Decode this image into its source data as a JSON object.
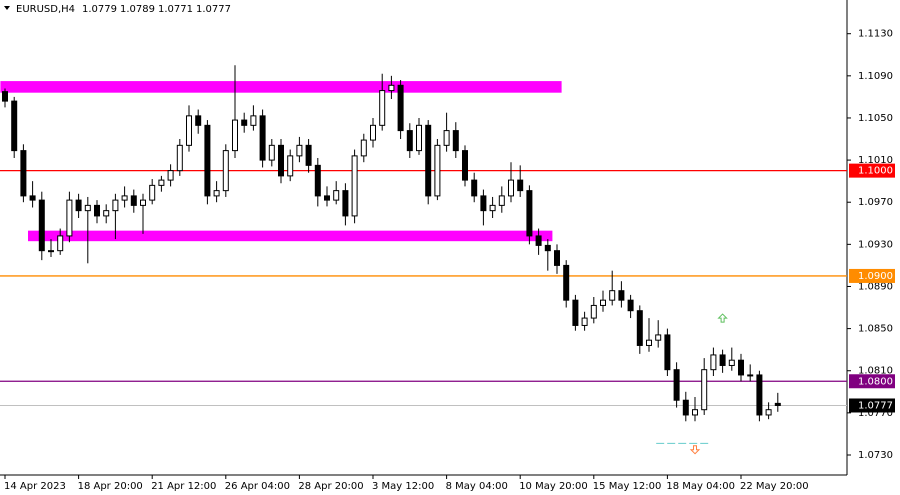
{
  "chart_data": {
    "type": "candlestick",
    "title": "EURUSD,H4",
    "categories": [
      "14 Apr 2023",
      null,
      null,
      null,
      null,
      null,
      null,
      null,
      "18 Apr 20:00",
      null,
      null,
      null,
      null,
      null,
      null,
      null,
      "21 Apr 12:00",
      null,
      null,
      null,
      null,
      null,
      null,
      null,
      "26 Apr 04:00",
      null,
      null,
      null,
      null,
      null,
      null,
      null,
      "28 Apr 20:00",
      null,
      null,
      null,
      null,
      null,
      null,
      null,
      "3 May 12:00",
      null,
      null,
      null,
      null,
      null,
      null,
      null,
      "8 May 04:00",
      null,
      null,
      null,
      null,
      null,
      null,
      null,
      "10 May 20:00",
      null,
      null,
      null,
      null,
      null,
      null,
      null,
      "15 May 12:00",
      null,
      null,
      null,
      null,
      null,
      null,
      null,
      "18 May 04:00",
      null,
      null,
      null,
      null,
      null,
      null,
      null,
      "22 May 20:00",
      null,
      null,
      null,
      null
    ],
    "ohlc": [
      [
        1.1075,
        1.1078,
        1.106,
        1.1066
      ],
      [
        1.1066,
        1.107,
        1.1012,
        1.1019
      ],
      [
        1.1019,
        1.1025,
        1.097,
        1.0976
      ],
      [
        1.0976,
        1.099,
        1.0965,
        1.0972
      ],
      [
        1.0972,
        1.098,
        1.0915,
        1.0924
      ],
      [
        1.0924,
        1.0935,
        1.0918,
        1.0924
      ],
      [
        1.0924,
        1.0945,
        1.092,
        1.0938
      ],
      [
        1.0938,
        1.098,
        1.0932,
        1.0972
      ],
      [
        1.0972,
        1.0978,
        1.0955,
        1.0962
      ],
      [
        1.0962,
        1.0975,
        1.0912,
        1.0967
      ],
      [
        1.0967,
        1.0972,
        1.095,
        1.0957
      ],
      [
        1.0957,
        1.0968,
        1.095,
        1.0962
      ],
      [
        1.0962,
        1.0978,
        1.0935,
        1.0972
      ],
      [
        1.0972,
        1.0985,
        1.0965,
        1.0976
      ],
      [
        1.0976,
        1.0982,
        1.096,
        1.0967
      ],
      [
        1.0967,
        1.0978,
        1.094,
        1.0972
      ],
      [
        1.0972,
        1.0992,
        1.0968,
        1.0986
      ],
      [
        1.0986,
        1.0995,
        1.098,
        1.0991
      ],
      [
        1.0991,
        1.1006,
        1.0985,
        1.1
      ],
      [
        1.1,
        1.103,
        1.0995,
        1.1024
      ],
      [
        1.1024,
        1.1062,
        1.1018,
        1.1052
      ],
      [
        1.1052,
        1.1058,
        1.1035,
        1.1043
      ],
      [
        1.1043,
        1.1048,
        1.0968,
        1.0976
      ],
      [
        1.0976,
        1.099,
        1.097,
        1.0981
      ],
      [
        1.0981,
        1.1025,
        1.0975,
        1.1019
      ],
      [
        1.1019,
        1.11,
        1.1012,
        1.1048
      ],
      [
        1.1048,
        1.1055,
        1.1036,
        1.1043
      ],
      [
        1.1043,
        1.1062,
        1.1038,
        1.1052
      ],
      [
        1.1052,
        1.1058,
        1.1003,
        1.101
      ],
      [
        1.101,
        1.103,
        1.1004,
        1.1024
      ],
      [
        1.1024,
        1.103,
        1.0988,
        1.0995
      ],
      [
        1.0995,
        1.102,
        1.099,
        1.1014
      ],
      [
        1.1014,
        1.1032,
        1.1008,
        1.1024
      ],
      [
        1.1024,
        1.103,
        1.0998,
        1.1005
      ],
      [
        1.1005,
        1.1012,
        1.0966,
        1.0976
      ],
      [
        1.0976,
        1.0985,
        1.0966,
        1.0972
      ],
      [
        1.0972,
        1.099,
        1.0968,
        1.0981
      ],
      [
        1.0981,
        1.0988,
        1.0948,
        1.0957
      ],
      [
        1.0957,
        1.102,
        1.095,
        1.1014
      ],
      [
        1.1014,
        1.1035,
        1.1008,
        1.1029
      ],
      [
        1.1029,
        1.105,
        1.1022,
        1.1043
      ],
      [
        1.1043,
        1.1092,
        1.1038,
        1.1076
      ],
      [
        1.1076,
        1.109,
        1.1068,
        1.1081
      ],
      [
        1.1081,
        1.1086,
        1.103,
        1.1038
      ],
      [
        1.1038,
        1.1045,
        1.1012,
        1.1019
      ],
      [
        1.1019,
        1.105,
        1.1015,
        1.1043
      ],
      [
        1.1043,
        1.1048,
        1.0968,
        1.0976
      ],
      [
        1.0976,
        1.103,
        1.0972,
        1.1024
      ],
      [
        1.1024,
        1.1055,
        1.1018,
        1.1038
      ],
      [
        1.1038,
        1.1046,
        1.1012,
        1.1019
      ],
      [
        1.1019,
        1.1024,
        1.0985,
        1.0991
      ],
      [
        1.0991,
        1.0998,
        1.097,
        1.0976
      ],
      [
        1.0976,
        1.0982,
        1.0948,
        1.0962
      ],
      [
        1.0962,
        1.0975,
        1.0955,
        1.0967
      ],
      [
        1.0967,
        1.0985,
        1.096,
        1.0976
      ],
      [
        1.0976,
        1.1008,
        1.097,
        1.0991
      ],
      [
        1.0991,
        1.1005,
        1.0975,
        1.0981
      ],
      [
        1.0981,
        1.0986,
        1.093,
        1.0938
      ],
      [
        1.0938,
        1.0945,
        1.092,
        1.0929
      ],
      [
        1.0929,
        1.0935,
        1.0905,
        1.0924
      ],
      [
        1.0924,
        1.093,
        1.0902,
        1.091
      ],
      [
        1.091,
        1.0915,
        1.087,
        1.0877
      ],
      [
        1.0877,
        1.0882,
        1.0848,
        1.0853
      ],
      [
        1.0853,
        1.0866,
        1.0848,
        1.086
      ],
      [
        1.086,
        1.088,
        1.0855,
        1.0872
      ],
      [
        1.0872,
        1.0886,
        1.0866,
        1.0877
      ],
      [
        1.0877,
        1.0905,
        1.0872,
        1.0886
      ],
      [
        1.0886,
        1.0895,
        1.087,
        1.0877
      ],
      [
        1.0877,
        1.0882,
        1.086,
        1.0867
      ],
      [
        1.0867,
        1.0872,
        1.0826,
        1.0834
      ],
      [
        1.0834,
        1.086,
        1.0828,
        1.0839
      ],
      [
        1.0839,
        1.0858,
        1.0832,
        1.0844
      ],
      [
        1.0844,
        1.085,
        1.0805,
        1.0811
      ],
      [
        1.0811,
        1.0818,
        1.0775,
        1.0782
      ],
      [
        1.0782,
        1.079,
        1.0762,
        1.0768
      ],
      [
        1.0768,
        1.0785,
        1.0762,
        1.0773
      ],
      [
        1.0773,
        1.0822,
        1.0768,
        1.0811
      ],
      [
        1.0811,
        1.0832,
        1.0805,
        1.0825
      ],
      [
        1.0825,
        1.083,
        1.0808,
        1.0815
      ],
      [
        1.0815,
        1.0832,
        1.081,
        1.082
      ],
      [
        1.082,
        1.0826,
        1.08,
        1.0806
      ],
      [
        1.0806,
        1.0816,
        1.08,
        1.0806
      ],
      [
        1.0806,
        1.081,
        1.0762,
        1.0768
      ],
      [
        1.0768,
        1.078,
        1.0764,
        1.0773
      ],
      [
        1.0779,
        1.0789,
        1.0771,
        1.0777
      ]
    ],
    "ylim": [
      1.0711,
      1.1162
    ],
    "yticks": [
      {
        "value": 1.113,
        "label": "1.1130"
      },
      {
        "value": 1.109,
        "label": "1.1090"
      },
      {
        "value": 1.105,
        "label": "1.1050"
      },
      {
        "value": 1.101,
        "label": "1.1010"
      },
      {
        "value": 1.097,
        "label": "1.0970"
      },
      {
        "value": 1.093,
        "label": "1.0930"
      },
      {
        "value": 1.089,
        "label": "1.0890"
      },
      {
        "value": 1.085,
        "label": "1.0850"
      },
      {
        "value": 1.081,
        "label": "1.0810"
      },
      {
        "value": 1.077,
        "label": "1.0770"
      },
      {
        "value": 1.073,
        "label": "1.0730"
      }
    ],
    "levels": [
      {
        "value": 1.1,
        "label": "1.1000",
        "color": "#ff0000"
      },
      {
        "value": 1.09,
        "label": "1.0900",
        "color": "#ff8c00"
      },
      {
        "value": 1.08,
        "label": "1.0800",
        "color": "#800080"
      }
    ],
    "current_price": {
      "value": 1.0777,
      "label": "1.0777"
    },
    "zones": [
      {
        "top": 1.1085,
        "bottom": 1.1074,
        "from": 0,
        "to": 60,
        "color": "#ff00ff"
      },
      {
        "top": 1.0943,
        "bottom": 1.0933,
        "from": 3,
        "to": 59,
        "color": "#ff00ff"
      }
    ],
    "signals": [
      {
        "direction": "up",
        "price": 1.086,
        "x": 78,
        "color": "#5cbf5c"
      },
      {
        "direction": "down",
        "price": 1.0735,
        "x": 75,
        "color": "#ff8040"
      }
    ],
    "dashed_line": {
      "price": 1.0741,
      "from": 71,
      "to": 76,
      "color": "#66cccc"
    }
  }
}
